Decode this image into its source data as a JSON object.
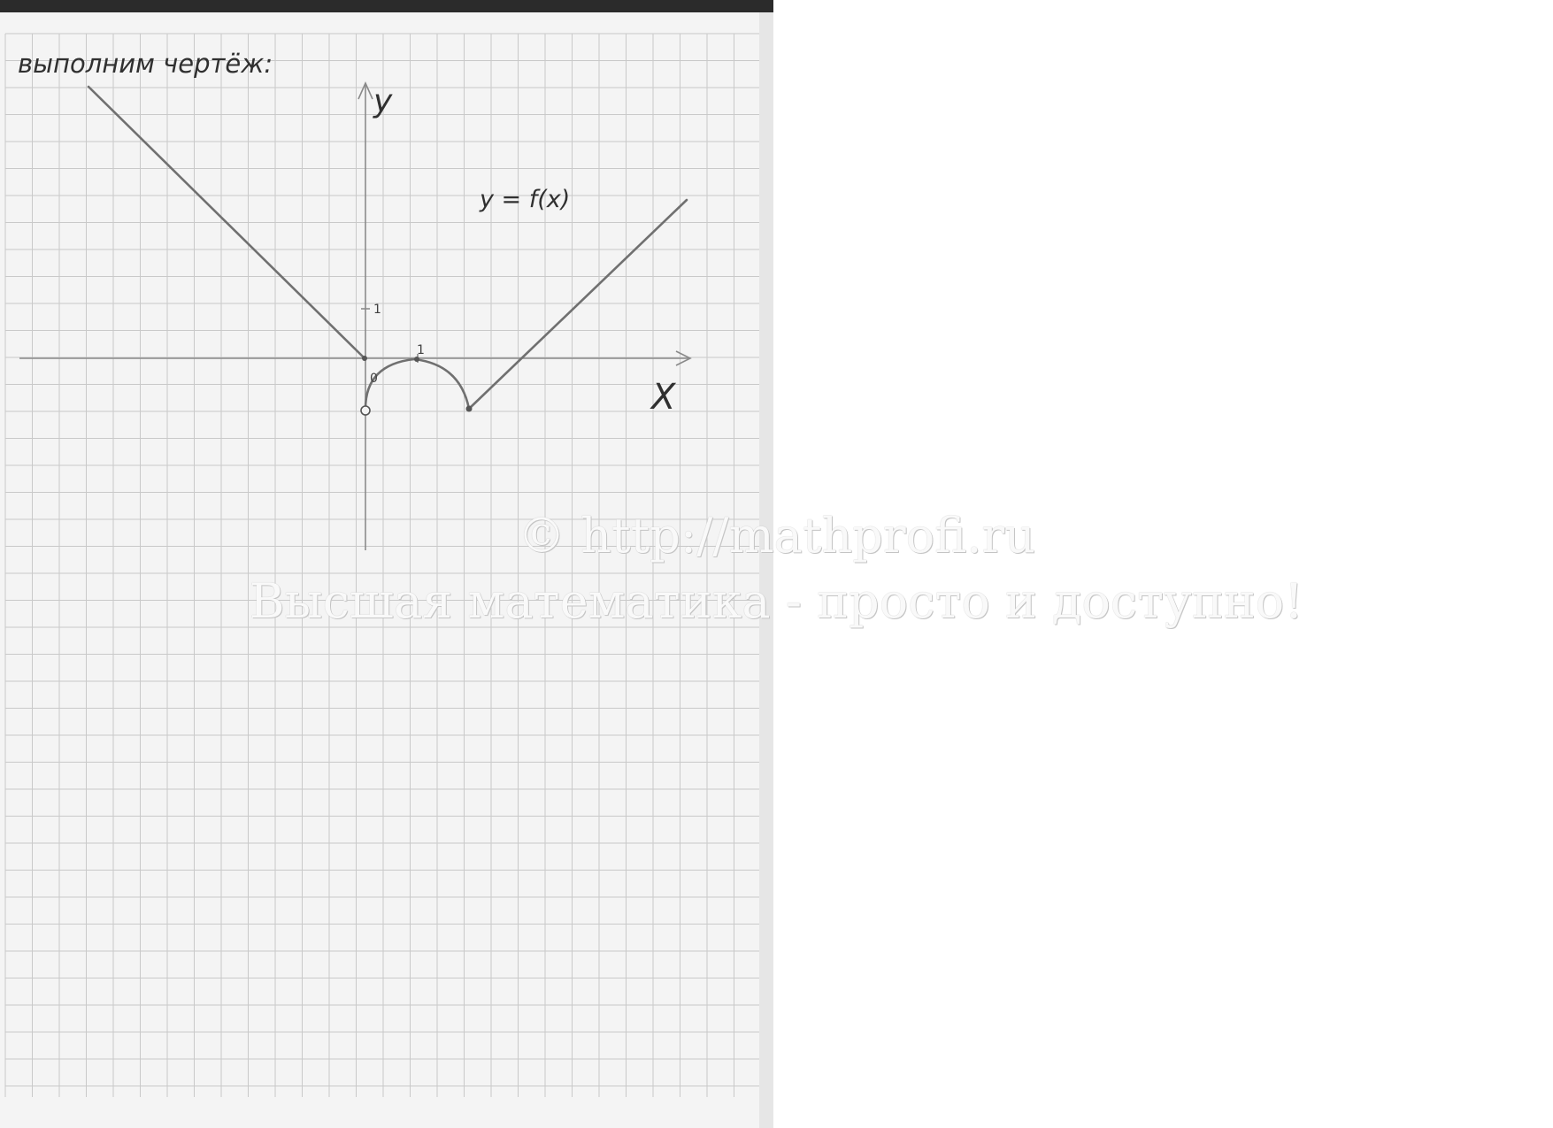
{
  "page": {
    "heading": "выполним чертёж:",
    "function_label": "y = f(x)",
    "axis_y_label": "y",
    "axis_x_label": "X",
    "origin_label": "0",
    "tick_x_label": "1",
    "tick_y_label": "1"
  },
  "watermark": {
    "line1": "© http://mathprofi.ru",
    "line2": "Высшая математика - просто и доступно!"
  },
  "colors": {
    "paper": "#f4f4f4",
    "grid": "#c9c9c9",
    "ink": "#707070"
  },
  "graph": {
    "left_branch": "y = -x, x ≤ 0",
    "middle_branch": "arc from (0,-1) through (1,0) to (2,-1)",
    "right_branch": "line from (2,-1) rising",
    "open_point": "(0,-1)"
  }
}
